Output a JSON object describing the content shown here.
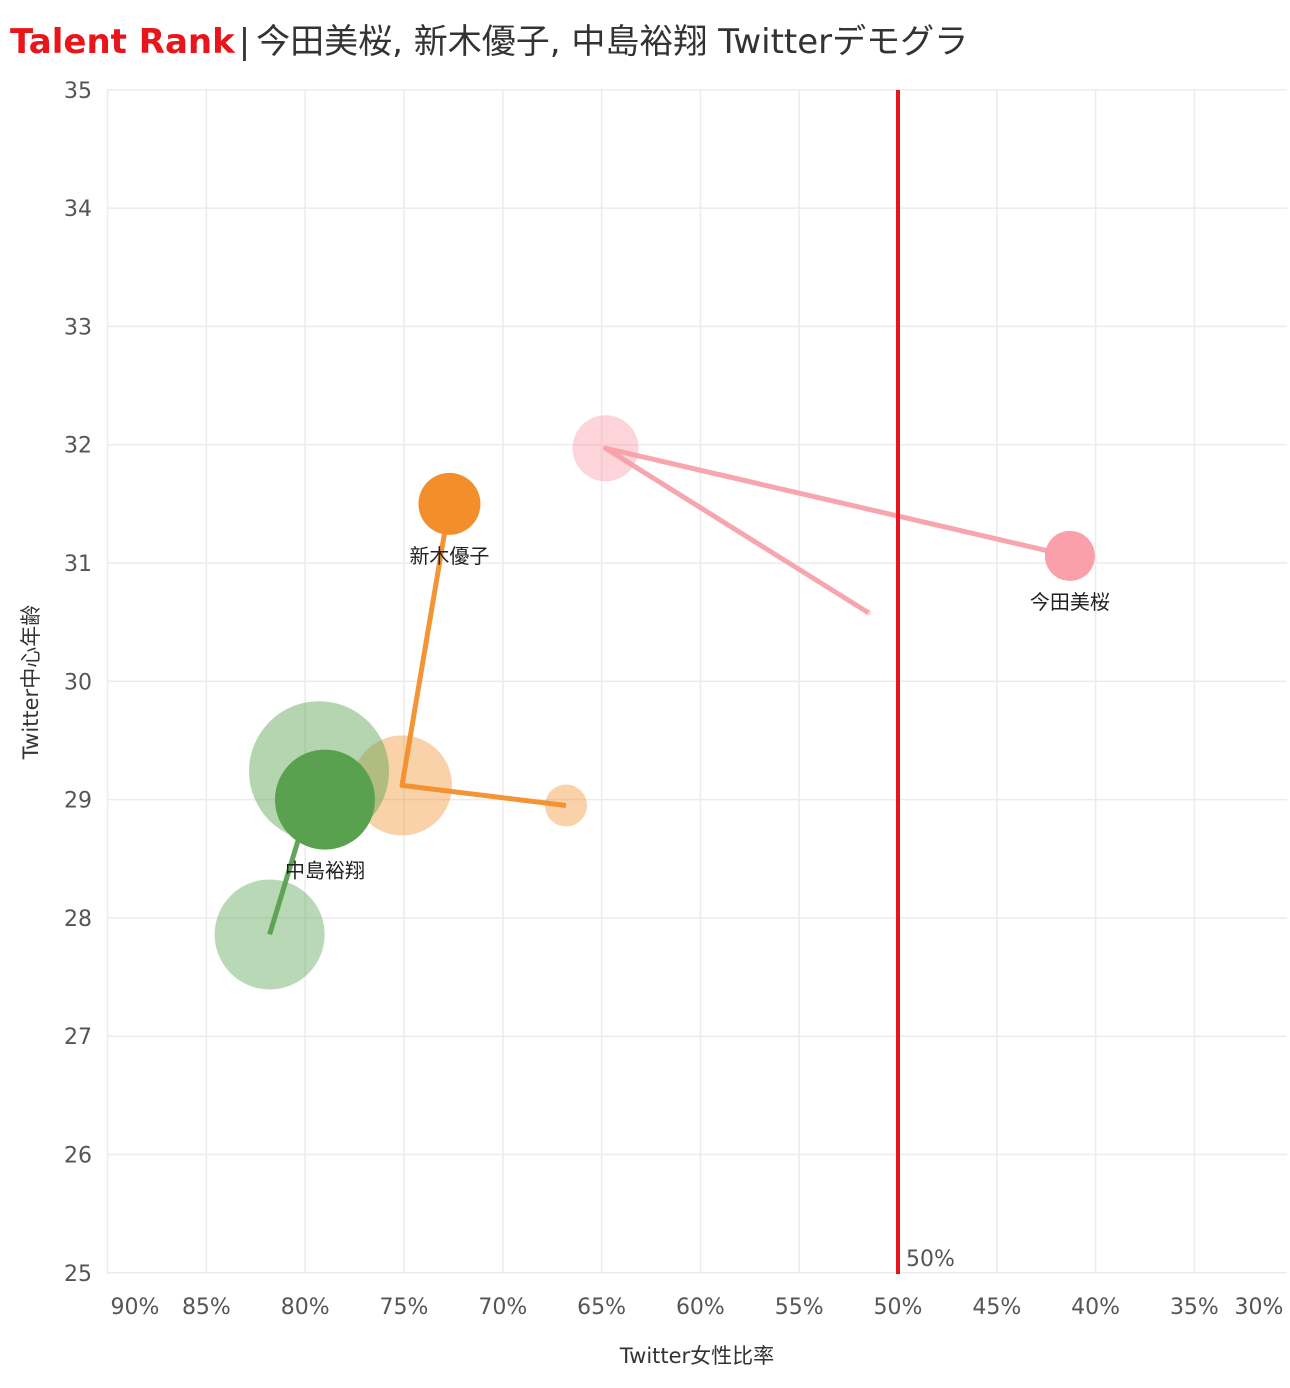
{
  "header": {
    "brand": "Talent Rank",
    "separator": "|",
    "title": "今田美桜, 新木優子, 中島裕翔 Twitterデモグラ"
  },
  "chart_data": {
    "type": "scatter",
    "title": "今田美桜, 新木優子, 中島裕翔 Twitterデモグラ",
    "xlabel": "Twitter女性比率",
    "ylabel": "Twitter中心年齢",
    "x_reversed": true,
    "xlim": [
      0.3,
      0.9
    ],
    "ylim": [
      25,
      35
    ],
    "x_ticks": [
      0.9,
      0.85,
      0.8,
      0.75,
      0.7,
      0.65,
      0.6,
      0.55,
      0.5,
      0.45,
      0.4,
      0.35,
      0.3
    ],
    "x_tick_labels": [
      "90%",
      "85%",
      "80%",
      "75%",
      "70%",
      "65%",
      "60%",
      "55%",
      "50%",
      "45%",
      "40%",
      "35%",
      "30%"
    ],
    "y_ticks": [
      25,
      26,
      27,
      28,
      29,
      30,
      31,
      32,
      33,
      34,
      35
    ],
    "y_tick_labels": [
      "25",
      "26",
      "27",
      "28",
      "29",
      "30",
      "31",
      "32",
      "33",
      "34",
      "35"
    ],
    "grid": true,
    "reference_line": {
      "x": 0.5,
      "label": "50%",
      "color": "#e8161b"
    },
    "series": [
      {
        "name": "今田美桜",
        "color": "#f9a0ab",
        "line_color": "#f7a0aa",
        "points": [
          {
            "x": 0.515,
            "y": 30.58,
            "size": 3,
            "opacity": 0.4
          },
          {
            "x": 0.648,
            "y": 31.97,
            "size": 33,
            "opacity": 0.45
          },
          {
            "x": 0.413,
            "y": 31.06,
            "size": 25,
            "opacity": 1.0
          }
        ]
      },
      {
        "name": "新木優子",
        "color": "#f28e2b",
        "line_color": "#f28e2b",
        "points": [
          {
            "x": 0.668,
            "y": 28.95,
            "size": 21,
            "opacity": 0.4
          },
          {
            "x": 0.751,
            "y": 29.12,
            "size": 50,
            "opacity": 0.4
          },
          {
            "x": 0.727,
            "y": 31.5,
            "size": 31,
            "opacity": 1.0
          }
        ]
      },
      {
        "name": "中島裕翔",
        "color": "#59a14f",
        "line_color": "#59a14f",
        "points": [
          {
            "x": 0.818,
            "y": 27.86,
            "size": 55,
            "opacity": 0.42
          },
          {
            "x": 0.793,
            "y": 29.24,
            "size": 70,
            "opacity": 0.45
          },
          {
            "x": 0.79,
            "y": 29.0,
            "size": 50,
            "opacity": 1.0
          }
        ]
      }
    ]
  }
}
